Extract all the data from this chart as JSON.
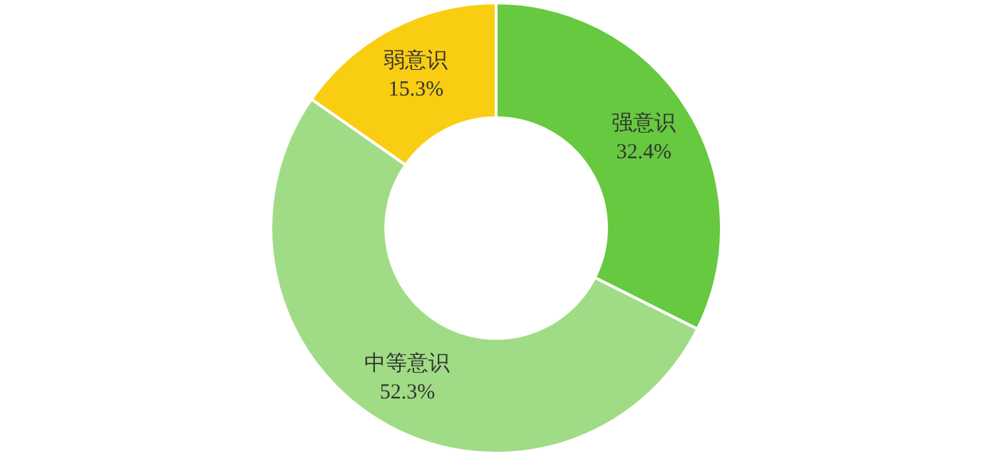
{
  "chart_data": {
    "type": "donut",
    "categories": [
      "强意识",
      "中等意识",
      "弱意识"
    ],
    "values": [
      32.4,
      52.3,
      15.3
    ],
    "colors": [
      "#66c93f",
      "#a0dc85",
      "#f9cd12"
    ],
    "value_labels": [
      "32.4%",
      "52.3%",
      "15.3%"
    ]
  }
}
